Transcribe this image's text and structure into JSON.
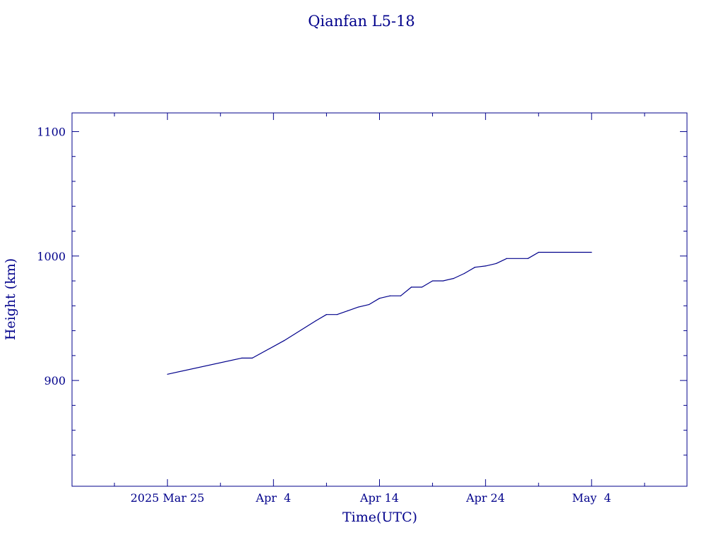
{
  "chart_data": {
    "type": "line",
    "title": "Qianfan L5-18",
    "xlabel": "Time(UTC)",
    "ylabel": "Height (km)",
    "color": "#00008B",
    "x_range": [
      "2025-03-16",
      "2025-05-13"
    ],
    "ylim": [
      815,
      1115
    ],
    "x_major_ticks": [
      {
        "date": "2025-03-25",
        "label": "2025 Mar 25"
      },
      {
        "date": "2025-04-04",
        "label": "Apr  4"
      },
      {
        "date": "2025-04-14",
        "label": "Apr 14"
      },
      {
        "date": "2025-04-24",
        "label": "Apr 24"
      },
      {
        "date": "2025-05-04",
        "label": "May  4"
      }
    ],
    "x_minor_ticks": [
      "2025-03-20",
      "2025-03-30",
      "2025-04-09",
      "2025-04-19",
      "2025-04-29",
      "2025-05-09"
    ],
    "y_major_ticks": [
      900,
      1000,
      1100
    ],
    "y_minor_ticks": [
      840,
      860,
      880,
      920,
      940,
      960,
      980,
      1020,
      1040,
      1060,
      1080
    ],
    "series": [
      {
        "points": [
          [
            "2025-03-25",
            905
          ],
          [
            "2025-04-01",
            918
          ],
          [
            "2025-04-02",
            918
          ],
          [
            "2025-04-05",
            932
          ],
          [
            "2025-04-08",
            948
          ],
          [
            "2025-04-09",
            953
          ],
          [
            "2025-04-10",
            953
          ],
          [
            "2025-04-11",
            956
          ],
          [
            "2025-04-12",
            959
          ],
          [
            "2025-04-13",
            961
          ],
          [
            "2025-04-14",
            966
          ],
          [
            "2025-04-15",
            968
          ],
          [
            "2025-04-16",
            968
          ],
          [
            "2025-04-17",
            975
          ],
          [
            "2025-04-18",
            975
          ],
          [
            "2025-04-19",
            980
          ],
          [
            "2025-04-20",
            980
          ],
          [
            "2025-04-21",
            982
          ],
          [
            "2025-04-22",
            986
          ],
          [
            "2025-04-23",
            991
          ],
          [
            "2025-04-24",
            992
          ],
          [
            "2025-04-25",
            994
          ],
          [
            "2025-04-26",
            998
          ],
          [
            "2025-04-28",
            998
          ],
          [
            "2025-04-29",
            1003
          ],
          [
            "2025-05-04",
            1003
          ]
        ]
      }
    ]
  }
}
